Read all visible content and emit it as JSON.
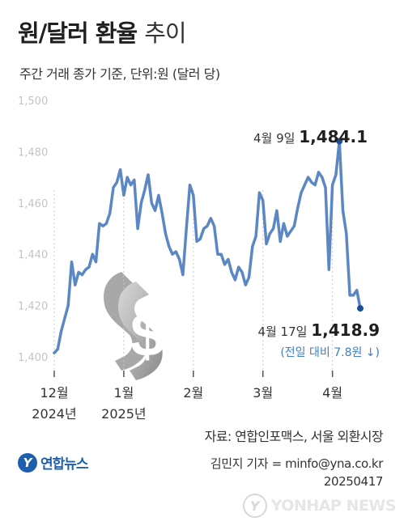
{
  "header": {
    "title_bold": "원/달러 환율",
    "title_light": "추이",
    "subtitle": "주간 거래 종가 기준, 단위:원 (달러 당)"
  },
  "chart_data": {
    "type": "line",
    "title": "원/달러 환율 추이",
    "ylabel": "단위:원 (달러 당)",
    "ylim": [
      1400,
      1500
    ],
    "y_ticks": [
      "1,500",
      "1,480",
      "1,460",
      "1,440",
      "1,420",
      "1,400"
    ],
    "x_ticks": [
      {
        "label": "12월",
        "sub": "2024년",
        "index": 0
      },
      {
        "label": "1월",
        "sub": "2025년",
        "index": 20
      },
      {
        "label": "2월",
        "sub": "",
        "index": 40
      },
      {
        "label": "3월",
        "sub": "",
        "index": 60
      },
      {
        "label": "4월",
        "sub": "",
        "index": 80
      }
    ],
    "grid": "vertical-dashed",
    "series": [
      {
        "values": [
          1401.5,
          1403,
          1410,
          1415,
          1420,
          1437,
          1428,
          1433,
          1432,
          1434,
          1435,
          1440,
          1437,
          1452,
          1451,
          1452,
          1456,
          1466,
          1468,
          1473,
          1463,
          1470,
          1467,
          1469,
          1450,
          1460,
          1465,
          1471,
          1460,
          1457,
          1463,
          1456,
          1448,
          1443,
          1440,
          1441,
          1438,
          1432,
          1450,
          1467,
          1463,
          1445,
          1446,
          1450,
          1451,
          1454,
          1451,
          1440,
          1440,
          1436,
          1438,
          1433,
          1430,
          1435,
          1433,
          1428,
          1431,
          1443,
          1447,
          1464,
          1461,
          1444,
          1448,
          1450,
          1457,
          1445,
          1452,
          1447,
          1449,
          1451,
          1458,
          1464,
          1467,
          1470,
          1468,
          1467,
          1472,
          1470,
          1466,
          1434,
          1467,
          1471,
          1484.1,
          1457,
          1448,
          1424,
          1424,
          1426,
          1418.9
        ]
      }
    ],
    "annotations": [
      {
        "date": "4월 9일",
        "value": "1,484.1",
        "index": 82
      },
      {
        "date": "4월 17일",
        "value": "1,418.9",
        "change": "(전일 대비 7.8원 ↓)",
        "index": 88
      }
    ],
    "line_color": "#5b87c4",
    "marker_color": "#1d4e92",
    "change_color": "#3f7fc0"
  },
  "footer": {
    "source": "자료: 연합인포맥스, 서울 외환시장",
    "author": "김민지 기자 = minfo@yna.co.kr",
    "date": "20250417",
    "logo_text": "연합뉴스",
    "watermark": "YONHAP NEWS"
  },
  "icons": [
    "dollar-sign-icon",
    "yonhap-logo-icon"
  ]
}
